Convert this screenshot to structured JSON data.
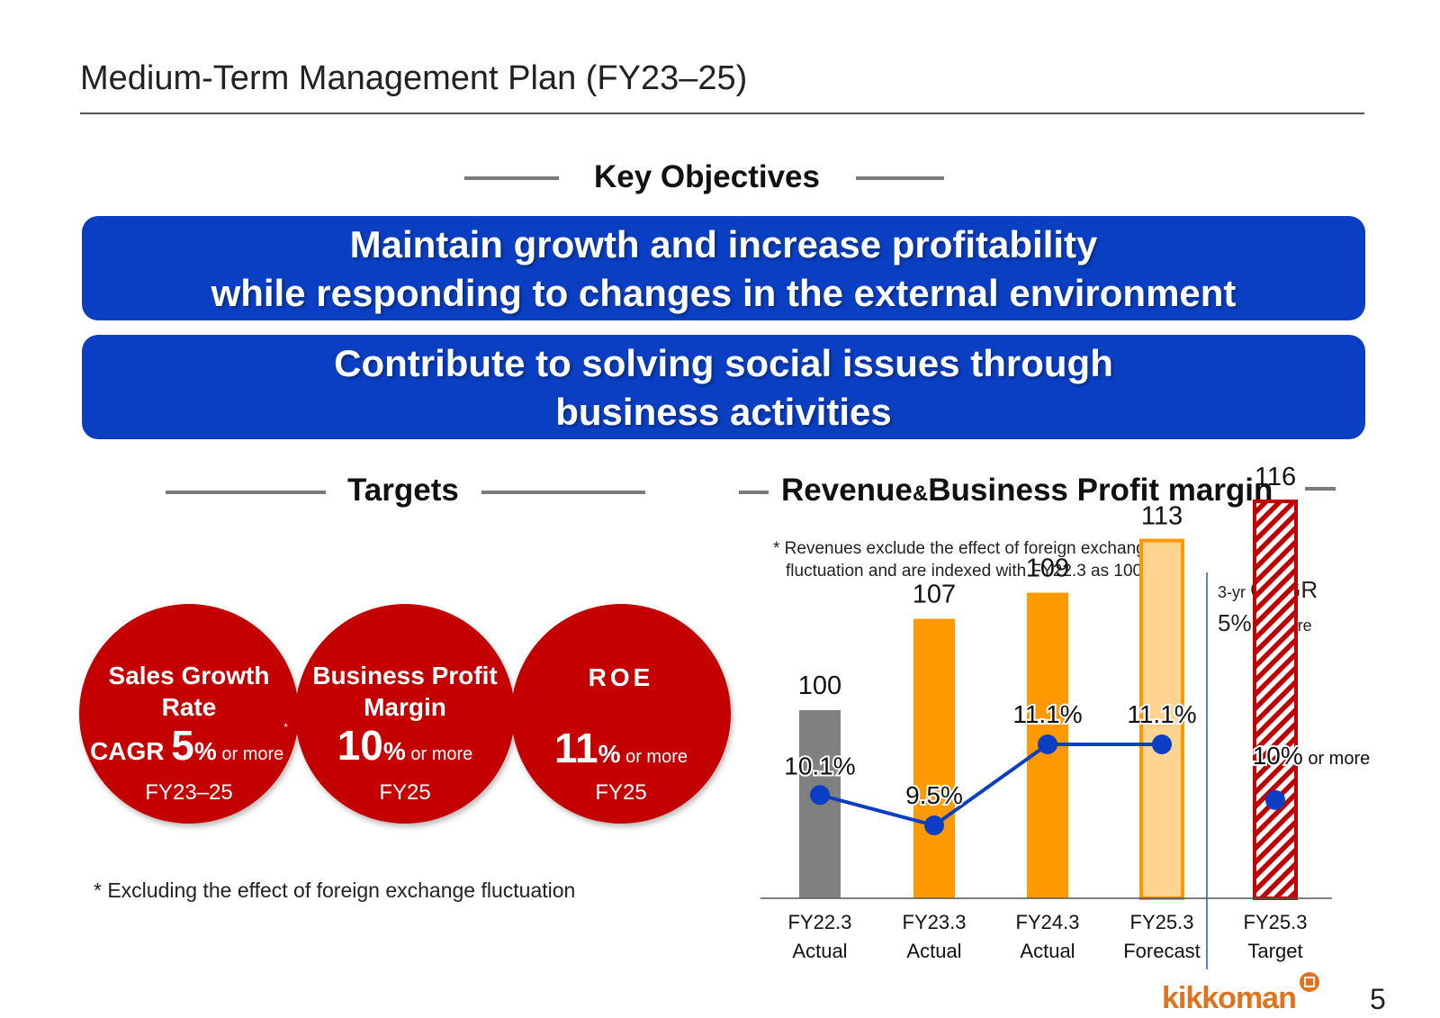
{
  "page": {
    "title": "Medium-Term Management Plan (FY23–25)",
    "page_number": "5",
    "logo_text": "kikkoman"
  },
  "key_objectives": {
    "heading": "Key Objectives",
    "banners": [
      {
        "line1": "Maintain growth and increase profitability",
        "line2": "while responding to changes in the external environment"
      },
      {
        "line1": "Contribute to solving social issues through",
        "line2": "business activities"
      }
    ]
  },
  "targets": {
    "heading": "Targets",
    "items": [
      {
        "name1": "Sales Growth",
        "name2": "Rate",
        "prefix": "CAGR ",
        "value": "5",
        "unit": "%",
        "suffix": " or more",
        "sup": "*",
        "period": "FY23–25"
      },
      {
        "name1": "Business Profit",
        "name2": "Margin",
        "prefix": "",
        "value": "10",
        "unit": "%",
        "suffix": " or more",
        "sup": "",
        "period": "FY25"
      },
      {
        "name1": "ROE",
        "name2": "",
        "prefix": "",
        "value": "11",
        "unit": "%",
        "suffix": " or more",
        "sup": "",
        "period": "FY25"
      }
    ],
    "footnote": "* Excluding the effect of foreign exchange fluctuation"
  },
  "colors": {
    "banner": "#0a3fc4",
    "circle": "#c40000",
    "bar_gray": "#808080",
    "bar_orange": "#ff9900",
    "bar_light": "#ffd490",
    "line": "#0a3fc4",
    "hatch": "#c00000"
  },
  "chart_data": {
    "type": "bar",
    "title": "Revenue & Business Profit margin",
    "title_part1": "Revenue",
    "title_amp": "&",
    "title_part2": "Business Profit margin",
    "note_line1": "* Revenues exclude the effect of foreign exchange",
    "note_line2": "fluctuation and are indexed with FY22.3 as 100.",
    "cagr_line1_prefix": "3-yr ",
    "cagr_line1": "CAGR",
    "cagr_line2_value": "5%",
    "cagr_line2_suffix": " or more",
    "categories": [
      {
        "line1": "FY22.3",
        "line2": "Actual"
      },
      {
        "line1": "FY23.3",
        "line2": "Actual"
      },
      {
        "line1": "FY24.3",
        "line2": "Actual"
      },
      {
        "line1": "FY25.3",
        "line2": "Forecast"
      },
      {
        "line1": "FY25.3",
        "line2": "Target"
      }
    ],
    "series": [
      {
        "name": "Revenue (index, FY22.3 = 100)",
        "values": [
          100,
          107,
          109,
          113,
          116
        ],
        "labels": [
          "100",
          "107",
          "109",
          "113",
          "116"
        ]
      },
      {
        "name": "Business Profit margin (%)",
        "values": [
          10.1,
          9.5,
          11.1,
          11.1,
          10.0
        ],
        "labels": [
          "10.1%",
          "9.5%",
          "11.1%",
          "11.1%",
          "10%"
        ],
        "last_label_suffix": " or more"
      }
    ],
    "bar_styles": [
      "actual-gray",
      "actual",
      "actual",
      "forecast",
      "target-hatched"
    ],
    "line_ylim": [
      7.0,
      12.0
    ]
  }
}
